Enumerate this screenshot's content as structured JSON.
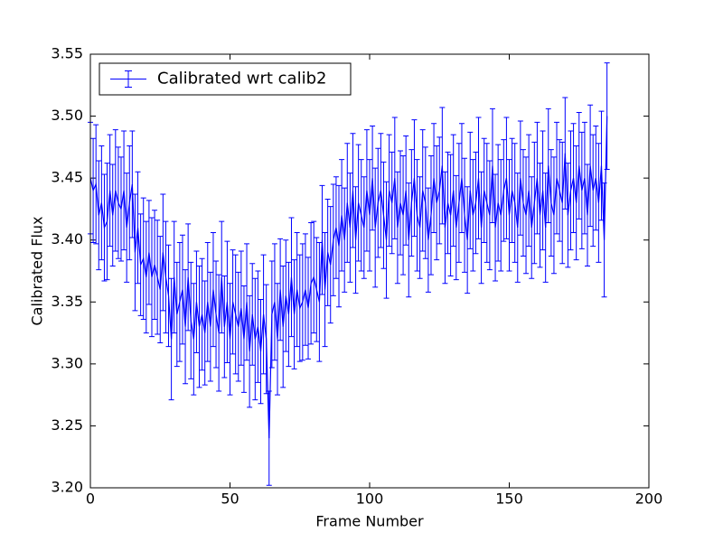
{
  "chart_data": {
    "type": "errorbar",
    "xlabel": "Frame Number",
    "ylabel": "Calibrated Flux",
    "xlim": [
      0,
      200
    ],
    "ylim": [
      3.2,
      3.55
    ],
    "xticks": [
      0,
      50,
      100,
      150,
      200
    ],
    "yticks": [
      {
        "value": 3.2,
        "label": "3.20"
      },
      3.25,
      {
        "value": 3.3,
        "label": "3.30"
      },
      3.35,
      {
        "value": 3.4,
        "label": "3.40"
      },
      3.45,
      {
        "value": 3.5,
        "label": "3.50"
      },
      3.55
    ],
    "legend": "upper left",
    "series": [
      {
        "name": "Calibrated wrt calib2",
        "color": "#0000ff",
        "x": [
          0,
          1,
          2,
          3,
          4,
          5,
          6,
          7,
          8,
          9,
          10,
          11,
          12,
          13,
          14,
          15,
          16,
          17,
          18,
          19,
          20,
          21,
          22,
          23,
          24,
          25,
          26,
          27,
          28,
          29,
          30,
          31,
          32,
          33,
          34,
          35,
          36,
          37,
          38,
          39,
          40,
          41,
          42,
          43,
          44,
          45,
          46,
          47,
          48,
          49,
          50,
          51,
          52,
          53,
          54,
          55,
          56,
          57,
          58,
          59,
          60,
          61,
          62,
          63,
          64,
          65,
          66,
          67,
          68,
          69,
          70,
          71,
          72,
          73,
          74,
          75,
          76,
          77,
          78,
          79,
          80,
          81,
          82,
          83,
          84,
          85,
          86,
          87,
          88,
          89,
          90,
          91,
          92,
          93,
          94,
          95,
          96,
          97,
          98,
          99,
          100,
          101,
          102,
          103,
          104,
          105,
          106,
          107,
          108,
          109,
          110,
          111,
          112,
          113,
          114,
          115,
          116,
          117,
          118,
          119,
          120,
          121,
          122,
          123,
          124,
          125,
          126,
          127,
          128,
          129,
          130,
          131,
          132,
          133,
          134,
          135,
          136,
          137,
          138,
          139,
          140,
          141,
          142,
          143,
          144,
          145,
          146,
          147,
          148,
          149,
          150,
          151,
          152,
          153,
          154,
          155,
          156,
          157,
          158,
          159,
          160,
          161,
          162,
          163,
          164,
          165,
          166,
          167,
          168,
          169,
          170,
          171,
          172,
          173,
          174,
          175,
          176,
          177,
          178,
          179,
          180,
          181,
          182,
          183,
          184,
          185
        ],
        "values": [
          3.45,
          3.44,
          3.445,
          3.42,
          3.43,
          3.41,
          3.415,
          3.44,
          3.42,
          3.44,
          3.43,
          3.425,
          3.44,
          3.41,
          3.43,
          3.445,
          3.39,
          3.41,
          3.38,
          3.385,
          3.37,
          3.39,
          3.37,
          3.38,
          3.37,
          3.36,
          3.39,
          3.37,
          3.355,
          3.32,
          3.37,
          3.34,
          3.35,
          3.36,
          3.33,
          3.37,
          3.335,
          3.32,
          3.35,
          3.33,
          3.34,
          3.325,
          3.35,
          3.33,
          3.36,
          3.34,
          3.325,
          3.37,
          3.33,
          3.35,
          3.32,
          3.35,
          3.34,
          3.33,
          3.345,
          3.32,
          3.35,
          3.31,
          3.34,
          3.32,
          3.33,
          3.31,
          3.34,
          3.32,
          3.24,
          3.34,
          3.35,
          3.32,
          3.36,
          3.33,
          3.355,
          3.34,
          3.37,
          3.34,
          3.36,
          3.345,
          3.35,
          3.36,
          3.345,
          3.365,
          3.37,
          3.36,
          3.35,
          3.4,
          3.36,
          3.39,
          3.38,
          3.4,
          3.41,
          3.395,
          3.42,
          3.4,
          3.43,
          3.41,
          3.44,
          3.4,
          3.43,
          3.42,
          3.41,
          3.44,
          3.42,
          3.45,
          3.41,
          3.43,
          3.44,
          3.42,
          3.4,
          3.44,
          3.43,
          3.45,
          3.41,
          3.43,
          3.42,
          3.44,
          3.4,
          3.43,
          3.45,
          3.42,
          3.41,
          3.44,
          3.43,
          3.4,
          3.42,
          3.45,
          3.43,
          3.44,
          3.46,
          3.41,
          3.43,
          3.42,
          3.44,
          3.41,
          3.43,
          3.45,
          3.42,
          3.4,
          3.44,
          3.42,
          3.43,
          3.45,
          3.41,
          3.44,
          3.43,
          3.42,
          3.46,
          3.41,
          3.43,
          3.42,
          3.44,
          3.45,
          3.42,
          3.44,
          3.43,
          3.41,
          3.45,
          3.43,
          3.42,
          3.44,
          3.41,
          3.43,
          3.45,
          3.42,
          3.44,
          3.41,
          3.46,
          3.43,
          3.42,
          3.45,
          3.44,
          3.43,
          3.47,
          3.42,
          3.44,
          3.45,
          3.43,
          3.46,
          3.44,
          3.45,
          3.42,
          3.46,
          3.44,
          3.45,
          3.43,
          3.46,
          3.4,
          3.5
        ],
        "errors": [
          0.045,
          0.042,
          0.048,
          0.044,
          0.046,
          0.043,
          0.047,
          0.045,
          0.041,
          0.049,
          0.045,
          0.042,
          0.048,
          0.044,
          0.046,
          0.043,
          0.047,
          0.045,
          0.041,
          0.049,
          0.045,
          0.042,
          0.048,
          0.044,
          0.046,
          0.043,
          0.047,
          0.045,
          0.041,
          0.049,
          0.045,
          0.042,
          0.048,
          0.044,
          0.046,
          0.043,
          0.047,
          0.045,
          0.041,
          0.049,
          0.045,
          0.042,
          0.048,
          0.044,
          0.046,
          0.043,
          0.047,
          0.045,
          0.041,
          0.049,
          0.045,
          0.042,
          0.048,
          0.044,
          0.046,
          0.043,
          0.047,
          0.045,
          0.041,
          0.049,
          0.045,
          0.042,
          0.048,
          0.044,
          0.038,
          0.043,
          0.047,
          0.045,
          0.041,
          0.049,
          0.045,
          0.042,
          0.048,
          0.044,
          0.046,
          0.043,
          0.047,
          0.045,
          0.041,
          0.049,
          0.045,
          0.042,
          0.048,
          0.044,
          0.046,
          0.043,
          0.047,
          0.045,
          0.041,
          0.049,
          0.045,
          0.042,
          0.048,
          0.044,
          0.046,
          0.043,
          0.047,
          0.045,
          0.041,
          0.049,
          0.045,
          0.042,
          0.048,
          0.044,
          0.046,
          0.043,
          0.047,
          0.045,
          0.041,
          0.049,
          0.045,
          0.042,
          0.048,
          0.044,
          0.046,
          0.043,
          0.047,
          0.045,
          0.041,
          0.049,
          0.045,
          0.042,
          0.048,
          0.044,
          0.046,
          0.043,
          0.047,
          0.045,
          0.041,
          0.049,
          0.045,
          0.042,
          0.048,
          0.044,
          0.046,
          0.043,
          0.047,
          0.045,
          0.041,
          0.049,
          0.045,
          0.042,
          0.048,
          0.044,
          0.046,
          0.043,
          0.047,
          0.045,
          0.041,
          0.049,
          0.045,
          0.042,
          0.048,
          0.044,
          0.046,
          0.043,
          0.047,
          0.045,
          0.041,
          0.049,
          0.045,
          0.042,
          0.048,
          0.044,
          0.046,
          0.043,
          0.047,
          0.045,
          0.041,
          0.049,
          0.045,
          0.042,
          0.048,
          0.044,
          0.046,
          0.043,
          0.047,
          0.045,
          0.041,
          0.049,
          0.045,
          0.042,
          0.048,
          0.044,
          0.046,
          0.043
        ]
      }
    ]
  }
}
